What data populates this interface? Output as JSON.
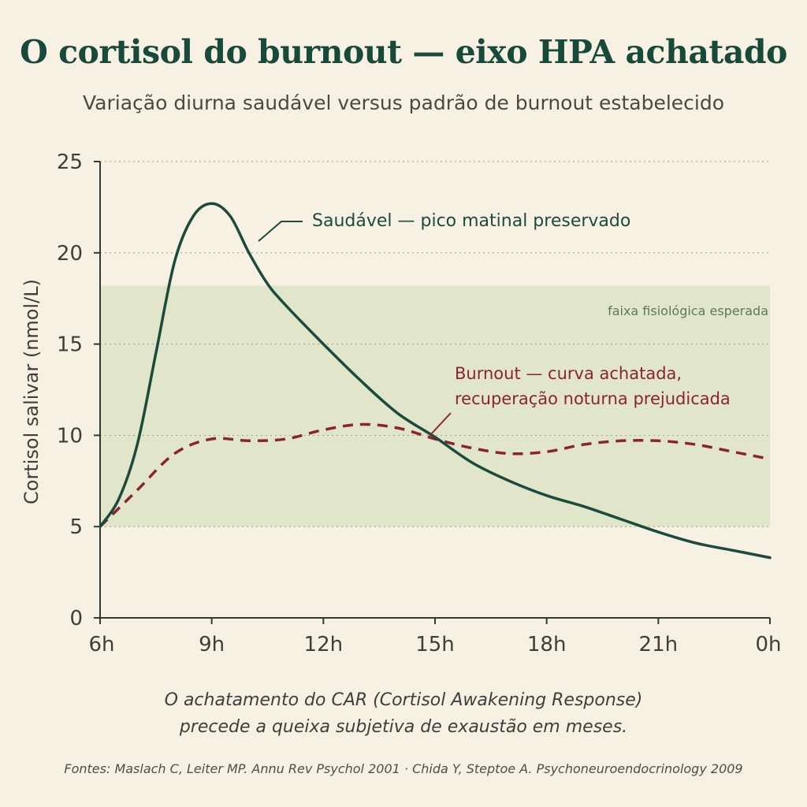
{
  "chart_data": {
    "type": "line",
    "title": "O cortisol do burnout — eixo HPA achatado",
    "subtitle": "Variação diurna saudável versus padrão de burnout estabelecido",
    "xlabel": "",
    "ylabel": "Cortisol salivar (nmol/L)",
    "x_ticks": [
      "6h",
      "9h",
      "12h",
      "15h",
      "18h",
      "21h",
      "0h"
    ],
    "x_range_hours": [
      6,
      24
    ],
    "y_ticks": [
      0,
      5,
      10,
      15,
      20,
      25
    ],
    "ylim": [
      0,
      25
    ],
    "grid": "horizontal-dotted",
    "band": {
      "label": "faixa fisiológica esperada",
      "y_low": 5,
      "y_high": 18.2,
      "color": "#dde3c4"
    },
    "series": [
      {
        "name": "Saudável — pico matinal preservado",
        "color": "#1c4a3c",
        "style": "solid",
        "x": [
          6,
          6.5,
          7,
          7.5,
          8,
          8.5,
          9,
          9.5,
          10,
          10.5,
          11,
          12,
          13,
          14,
          15,
          16,
          17,
          18,
          19,
          20,
          21,
          22,
          23,
          24
        ],
        "y": [
          5.0,
          6.5,
          9.5,
          14.5,
          19.5,
          22.0,
          22.7,
          22.0,
          20.0,
          18.3,
          17.1,
          15.0,
          13.0,
          11.2,
          9.9,
          8.5,
          7.5,
          6.7,
          6.1,
          5.4,
          4.7,
          4.1,
          3.7,
          3.3
        ]
      },
      {
        "name": "Burnout — curva achatada, recuperação noturna prejudicada",
        "color": "#8a2430",
        "style": "dashed",
        "x": [
          6,
          7,
          8,
          9,
          10,
          11,
          12,
          13,
          14,
          15,
          16,
          17,
          18,
          19,
          20,
          21,
          22,
          23,
          24
        ],
        "y": [
          5.0,
          7.0,
          9.0,
          9.8,
          9.7,
          9.8,
          10.3,
          10.6,
          10.4,
          9.8,
          9.3,
          9.0,
          9.1,
          9.5,
          9.7,
          9.7,
          9.5,
          9.1,
          8.7
        ]
      }
    ]
  },
  "note": {
    "line1": "O achatamento do CAR (Cortisol Awakening Response)",
    "line2": "precede a queixa subjetiva de exaustão em meses."
  },
  "sources": "Fontes: Maslach C, Leiter MP. Annu Rev Psychol 2001 · Chida Y, Steptoe A. Psychoneuroendocrinology 2009"
}
